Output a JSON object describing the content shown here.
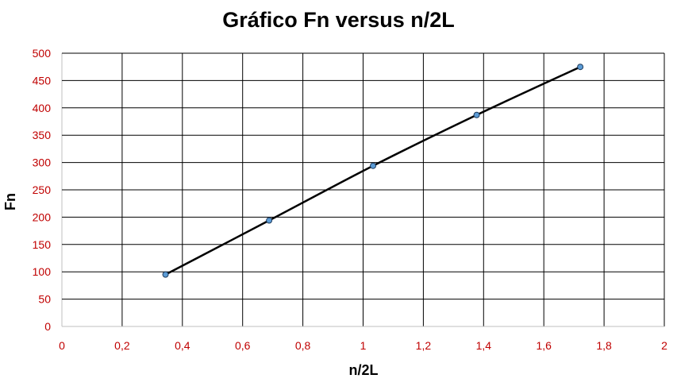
{
  "chart_data": {
    "type": "scatter",
    "title": "Gráfico Fn versus n/2L",
    "xlabel": "n/2L",
    "ylabel": "Fn",
    "xlim": [
      0,
      2
    ],
    "ylim": [
      0,
      500
    ],
    "x_ticks": [
      "0",
      "0,2",
      "0,4",
      "0,6",
      "0,8",
      "1",
      "1,2",
      "1,4",
      "1,6",
      "1,8",
      "2"
    ],
    "y_ticks": [
      "0",
      "50",
      "100",
      "150",
      "200",
      "250",
      "300",
      "350",
      "400",
      "450",
      "500"
    ],
    "grid": true,
    "legend": "none",
    "series": [
      {
        "x": [
          0.344,
          0.688,
          1.033,
          1.377,
          1.721
        ],
        "y": [
          95,
          194,
          294,
          387,
          475
        ],
        "marker_color": "#5b9bd5",
        "line_color": "#000000"
      }
    ]
  }
}
